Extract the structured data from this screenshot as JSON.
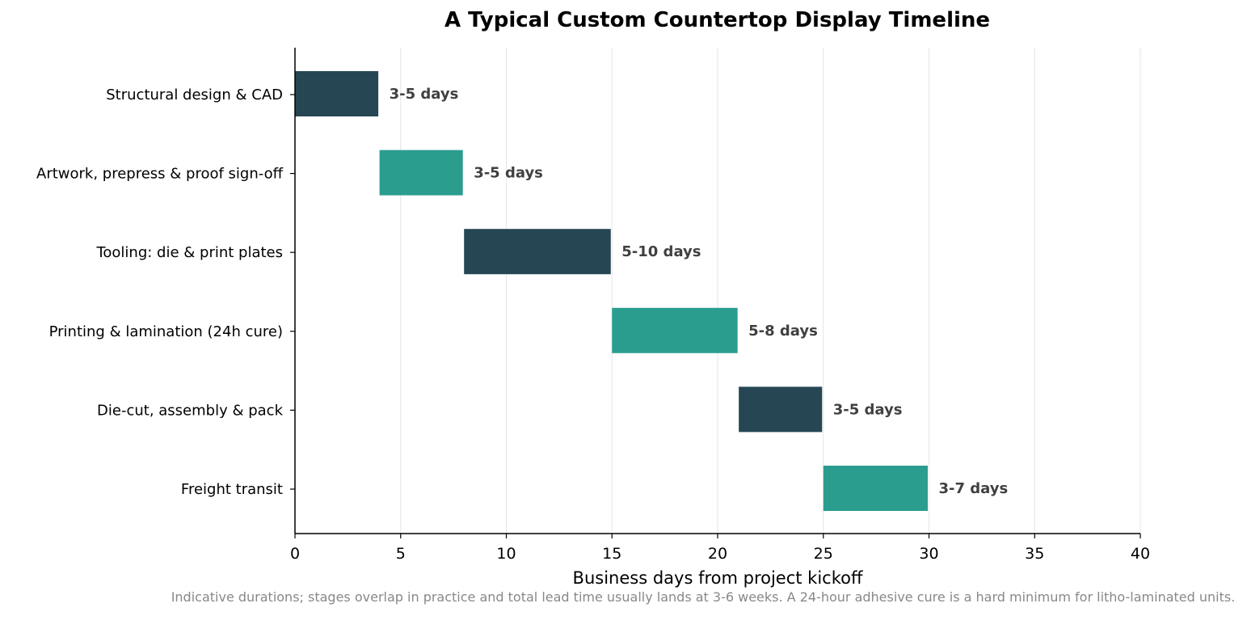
{
  "chart_data": {
    "type": "gantt",
    "title": "A Typical Custom Countertop Display Timeline",
    "xlabel": "Business days from project kickoff",
    "note": "Indicative durations; stages overlap in practice and total lead time usually lands at 3-6 weeks. A 24-hour adhesive cure is a hard minimum for litho-laminated units.",
    "xlim": [
      0,
      40
    ],
    "xticks": [
      0,
      5,
      10,
      15,
      20,
      25,
      30,
      35,
      40
    ],
    "grid": "vertical",
    "colors": {
      "dark": "#264653",
      "teal": "#2a9d8f",
      "label": "#404040",
      "grid": "#e6e6e6",
      "axis": "#000000",
      "note": "#888888"
    },
    "tasks": [
      {
        "name": "Structural design & CAD",
        "start": 0,
        "end": 4,
        "label": "3-5 days",
        "color": "#264653"
      },
      {
        "name": "Artwork, prepress & proof sign-off",
        "start": 4,
        "end": 8,
        "label": "3-5 days",
        "color": "#2a9d8f"
      },
      {
        "name": "Tooling: die & print plates",
        "start": 8,
        "end": 15,
        "label": "5-10 days",
        "color": "#264653"
      },
      {
        "name": "Printing & lamination (24h cure)",
        "start": 15,
        "end": 21,
        "label": "5-8 days",
        "color": "#2a9d8f"
      },
      {
        "name": "Die-cut, assembly & pack",
        "start": 21,
        "end": 25,
        "label": "3-5 days",
        "color": "#264653"
      },
      {
        "name": "Freight transit",
        "start": 25,
        "end": 30,
        "label": "3-7 days",
        "color": "#2a9d8f"
      }
    ]
  }
}
